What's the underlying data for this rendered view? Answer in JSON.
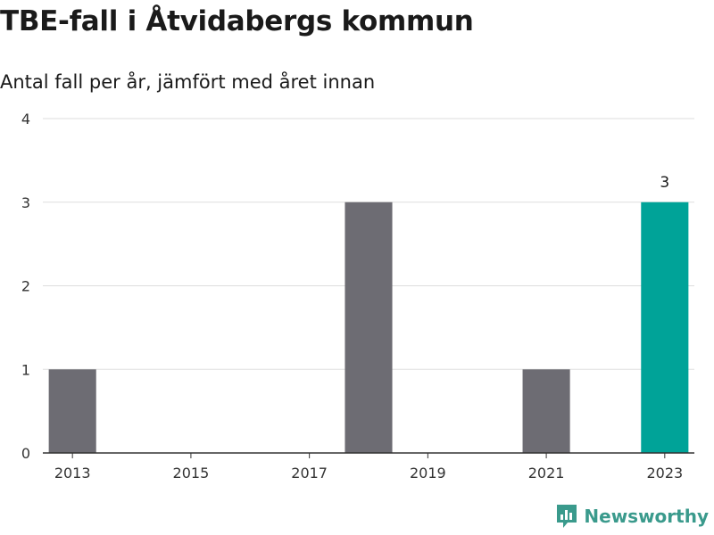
{
  "chart_data": {
    "type": "bar",
    "title": "TBE-fall i Åtvidabergs kommun",
    "subtitle": "Antal fall per år, jämfört med året innan",
    "categories": [
      "2013",
      "2014",
      "2015",
      "2016",
      "2017",
      "2018",
      "2019",
      "2020",
      "2021",
      "2022",
      "2023"
    ],
    "values": [
      1,
      0,
      0,
      0,
      0,
      3,
      0,
      0,
      1,
      0,
      3
    ],
    "x_tick_labels": [
      "2013",
      "2015",
      "2017",
      "2019",
      "2021",
      "2023"
    ],
    "y_ticks": [
      0,
      1,
      2,
      3,
      4
    ],
    "ylim": [
      0,
      4
    ],
    "grid": true,
    "highlight_category": "2023",
    "data_labels": [
      {
        "category": "2023",
        "text": "3"
      }
    ],
    "colors": {
      "bar": "#6d6c73",
      "highlight": "#00a398",
      "grid": "#dddddd",
      "axis": "#333333"
    }
  },
  "brand": {
    "name": "Newsworthy",
    "icon": "newsworthy-logo-icon",
    "color": "#3a9a8c"
  }
}
